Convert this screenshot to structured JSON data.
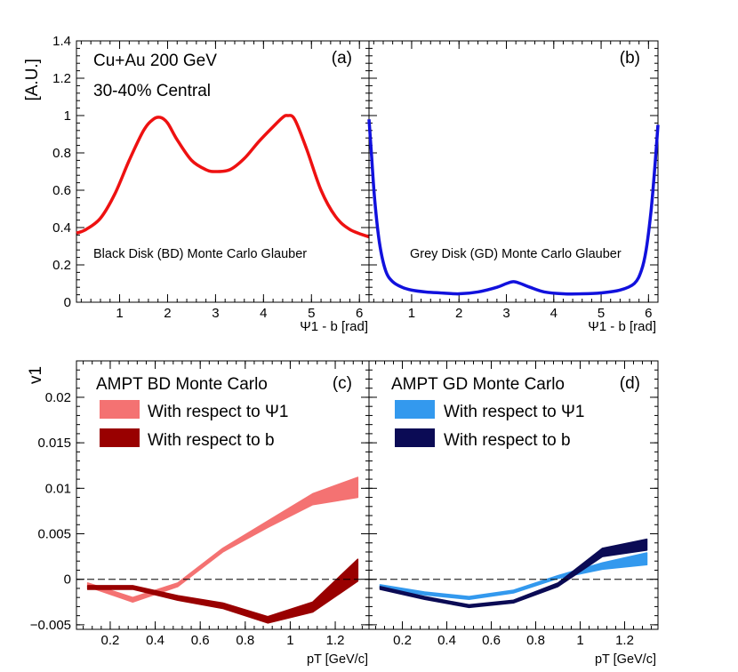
{
  "chart_data": [
    {
      "id": "a",
      "type": "line",
      "panel_label": "(a)",
      "ylabel": "[A.U.]",
      "xlabel": "Ψ1 - b [rad]",
      "ylim": [
        0,
        1.4
      ],
      "xlim": [
        0.1,
        6.2
      ],
      "xticks": [
        "1",
        "2",
        "3",
        "4",
        "5",
        "6"
      ],
      "yticks": [
        "0",
        "0.2",
        "0.4",
        "0.6",
        "0.8",
        "1",
        "1.2",
        "1.4"
      ],
      "annotations": [
        "Cu+Au 200 GeV",
        "30-40% Central",
        "Black Disk (BD) Monte Carlo Glauber"
      ],
      "color": "#ee1111",
      "x": [
        0.1,
        0.3,
        0.6,
        0.9,
        1.2,
        1.5,
        1.7,
        1.85,
        2.0,
        2.2,
        2.5,
        2.8,
        3.0,
        3.3,
        3.6,
        3.9,
        4.2,
        4.4,
        4.5,
        4.65,
        4.9,
        5.2,
        5.5,
        5.8,
        6.2
      ],
      "y": [
        0.37,
        0.39,
        0.45,
        0.58,
        0.76,
        0.92,
        0.98,
        0.99,
        0.96,
        0.87,
        0.76,
        0.71,
        0.7,
        0.71,
        0.77,
        0.86,
        0.94,
        0.99,
        1.0,
        0.98,
        0.82,
        0.6,
        0.46,
        0.39,
        0.35
      ]
    },
    {
      "id": "b",
      "type": "line",
      "panel_label": "(b)",
      "xlabel": "Ψ1 - b [rad]",
      "ylim": [
        0,
        1.4
      ],
      "xlim": [
        0.1,
        6.2
      ],
      "xticks": [
        "1",
        "2",
        "3",
        "4",
        "5",
        "6"
      ],
      "annotations": [
        "Grey Disk (GD) Monte Carlo Glauber"
      ],
      "color": "#1111dd",
      "x": [
        0.1,
        0.15,
        0.22,
        0.32,
        0.45,
        0.6,
        0.8,
        1.0,
        1.3,
        1.6,
        2.0,
        2.4,
        2.8,
        3.0,
        3.15,
        3.3,
        3.5,
        3.8,
        4.2,
        4.6,
        5.0,
        5.4,
        5.7,
        5.85,
        5.95,
        6.05,
        6.12,
        6.18,
        6.2
      ],
      "y": [
        0.98,
        0.8,
        0.55,
        0.32,
        0.17,
        0.11,
        0.08,
        0.065,
        0.055,
        0.05,
        0.045,
        0.055,
        0.08,
        0.1,
        0.11,
        0.1,
        0.08,
        0.055,
        0.045,
        0.045,
        0.05,
        0.065,
        0.1,
        0.17,
        0.28,
        0.48,
        0.68,
        0.88,
        0.95
      ]
    },
    {
      "id": "c",
      "type": "area",
      "panel_label": "(c)",
      "ylabel": "v1",
      "xlabel": "pT [GeV/c]",
      "ylim": [
        -0.0055,
        0.024
      ],
      "xlim": [
        0.05,
        1.35
      ],
      "xticks": [
        "0.2",
        "0.4",
        "0.6",
        "0.8",
        "1",
        "1.2"
      ],
      "yticks": [
        "−0.005",
        "0",
        "0.005",
        "0.01",
        "0.015",
        "0.02"
      ],
      "zero_line": true,
      "title": "AMPT BD Monte Carlo",
      "legend": [
        "With respect to Ψ1",
        "With respect to b"
      ],
      "series": [
        {
          "name": "With respect to Ψ1",
          "color": "#f47272",
          "x": [
            0.1,
            0.3,
            0.5,
            0.7,
            0.9,
            1.1,
            1.3
          ],
          "lo": [
            -0.0008,
            -0.0025,
            -0.0008,
            0.003,
            0.0057,
            0.0082,
            0.009
          ],
          "hi": [
            -0.0004,
            -0.002,
            -0.0004,
            0.0034,
            0.0064,
            0.0094,
            0.0112
          ]
        },
        {
          "name": "With respect to b",
          "color": "#990000",
          "x": [
            0.1,
            0.3,
            0.5,
            0.7,
            0.9,
            1.1,
            1.3
          ],
          "lo": [
            -0.0011,
            -0.0011,
            -0.0023,
            -0.0032,
            -0.0048,
            -0.0036,
            -0.0002
          ],
          "hi": [
            -0.0007,
            -0.0007,
            -0.0018,
            -0.0026,
            -0.0041,
            -0.0025,
            0.0022
          ]
        }
      ]
    },
    {
      "id": "d",
      "type": "area",
      "panel_label": "(d)",
      "xlabel": "pT [GeV/c]",
      "ylim": [
        -0.0055,
        0.024
      ],
      "xlim": [
        0.05,
        1.35
      ],
      "xticks": [
        "0.2",
        "0.4",
        "0.6",
        "0.8",
        "1",
        "1.2"
      ],
      "zero_line": true,
      "title": "AMPT GD Monte Carlo",
      "legend": [
        "With respect to Ψ1",
        "With respect to b"
      ],
      "series": [
        {
          "name": "With respect to Ψ1",
          "color": "#3399ee",
          "x": [
            0.1,
            0.3,
            0.5,
            0.7,
            0.9,
            1.1,
            1.3
          ],
          "lo": [
            -0.0009,
            -0.0017,
            -0.0022,
            -0.0015,
            0.0001,
            0.0011,
            0.0016
          ],
          "hi": [
            -0.0006,
            -0.0014,
            -0.0019,
            -0.0012,
            0.0004,
            0.0018,
            0.0029
          ]
        },
        {
          "name": "With respect to b",
          "color": "#0b0b55",
          "x": [
            0.1,
            0.3,
            0.5,
            0.7,
            0.9,
            1.1,
            1.3
          ],
          "lo": [
            -0.0011,
            -0.0022,
            -0.0031,
            -0.0026,
            -0.0008,
            0.0025,
            0.0032
          ],
          "hi": [
            -0.0008,
            -0.0019,
            -0.0028,
            -0.0023,
            -0.0004,
            0.0034,
            0.0044
          ]
        }
      ]
    }
  ]
}
